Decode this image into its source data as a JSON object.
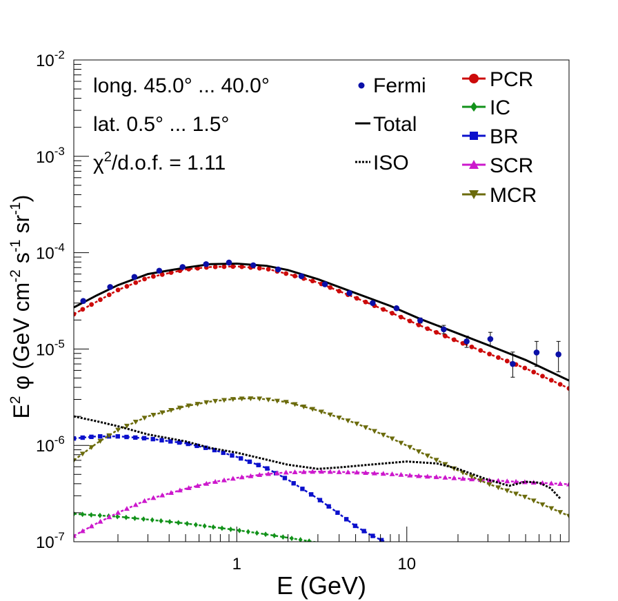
{
  "chart_data": {
    "type": "line",
    "title": "",
    "xlabel": "E (GeV)",
    "ylabel": "E² φ (GeV cm⁻² s⁻¹ sr⁻¹)",
    "ylabel_parts": {
      "e": "E",
      "e_exp": "2",
      "phi": "φ (GeV cm",
      "cm_exp": "-2",
      "s": " s",
      "s_exp": "-1",
      "sr": " sr",
      "sr_exp": "-1",
      "close": ")"
    },
    "xscale": "log",
    "yscale": "log",
    "xlim": [
      0.11,
      90
    ],
    "ylim": [
      1e-07,
      0.01
    ],
    "x_ticks": [
      {
        "value": 1,
        "label": "1"
      },
      {
        "value": 10,
        "label": "10"
      }
    ],
    "y_ticks": [
      {
        "value": 1e-07,
        "base": "10",
        "exp": "-7"
      },
      {
        "value": 1e-06,
        "base": "10",
        "exp": "-6"
      },
      {
        "value": 1e-05,
        "base": "10",
        "exp": "-5"
      },
      {
        "value": 0.0001,
        "base": "10",
        "exp": "-4"
      },
      {
        "value": 0.001,
        "base": "10",
        "exp": "-3"
      },
      {
        "value": 0.01,
        "base": "10",
        "exp": "-2"
      }
    ],
    "annotations": {
      "longitude": "long. 45.0° ... 40.0°",
      "latitude": "lat. 0.5° ... 1.5°",
      "chi_prefix": "χ",
      "chi_exp": "2",
      "chi_rest": "/d.o.f. = 1.11"
    },
    "legend_left": [
      {
        "label": "Fermi",
        "style": "points",
        "color": "#0b10a8"
      },
      {
        "label": "Total",
        "style": "solid",
        "color": "#000000"
      },
      {
        "label": "ISO",
        "style": "dotted",
        "color": "#000000"
      }
    ],
    "legend_right": [
      {
        "label": "PCR",
        "marker": "circle",
        "color": "#cc0a0a"
      },
      {
        "label": "IC",
        "marker": "diamond",
        "color": "#12921a"
      },
      {
        "label": "BR",
        "marker": "square",
        "color": "#0b10cc"
      },
      {
        "label": "SCR",
        "marker": "triangle-up",
        "color": "#cc18cc"
      },
      {
        "label": "MCR",
        "marker": "triangle-down",
        "color": "#6b6b0c"
      }
    ],
    "series": [
      {
        "name": "Fermi",
        "type": "points",
        "color": "#0b10a8",
        "x": [
          0.125,
          0.18,
          0.25,
          0.35,
          0.48,
          0.66,
          0.9,
          1.25,
          1.75,
          2.4,
          3.3,
          4.6,
          6.3,
          8.7,
          12,
          16.5,
          22.5,
          31,
          42,
          58,
          78
        ],
        "y": [
          3.15e-05,
          4.4e-05,
          5.6e-05,
          6.5e-05,
          7.1e-05,
          7.6e-05,
          7.9e-05,
          7.4e-05,
          6.7e-05,
          5.7e-05,
          4.7e-05,
          3.8e-05,
          3e-05,
          2.65e-05,
          1.98e-05,
          1.6e-05,
          1.2e-05,
          1.27e-05,
          7e-06,
          9.2e-06,
          8.8e-06
        ],
        "err_lo": [
          1.5e-06,
          1.5e-06,
          1.8e-06,
          2e-06,
          2e-06,
          2e-06,
          2e-06,
          2e-06,
          2e-06,
          1.8e-06,
          1.5e-06,
          1.2e-06,
          1e-06,
          1e-06,
          1.2e-06,
          1.6e-06,
          1.6e-06,
          1.9e-06,
          1.9e-06,
          2.6e-06,
          3e-06
        ],
        "err_hi": [
          1.5e-06,
          1.5e-06,
          1.8e-06,
          2e-06,
          2e-06,
          2e-06,
          2e-06,
          2e-06,
          2e-06,
          1.8e-06,
          1.5e-06,
          1.2e-06,
          1e-06,
          1e-06,
          1.2e-06,
          1.6e-06,
          1.6e-06,
          2.2e-06,
          2.3e-06,
          2.8e-06,
          3.2e-06
        ]
      },
      {
        "name": "Total",
        "type": "solid",
        "color": "#000000",
        "x": [
          0.11,
          0.15,
          0.2,
          0.3,
          0.5,
          0.7,
          1.0,
          1.5,
          2,
          3,
          5,
          8,
          12,
          20,
          30,
          50,
          90
        ],
        "y": [
          2.7e-05,
          3.6e-05,
          4.6e-05,
          6e-05,
          7e-05,
          7.6e-05,
          7.7e-05,
          7.3e-05,
          6.6e-05,
          5.3e-05,
          3.8e-05,
          2.8e-05,
          2.05e-05,
          1.45e-05,
          1.1e-05,
          7.7e-06,
          4.7e-06
        ]
      },
      {
        "name": "PCR",
        "type": "markers",
        "marker": "circle",
        "color": "#cc0a0a",
        "x": [
          0.11,
          0.15,
          0.2,
          0.3,
          0.5,
          0.7,
          1.0,
          1.5,
          2,
          3,
          5,
          8,
          12,
          20,
          30,
          50,
          90
        ],
        "y": [
          2.3e-05,
          3.1e-05,
          4.1e-05,
          5.5e-05,
          6.7e-05,
          7.1e-05,
          7.2e-05,
          6.8e-05,
          6e-05,
          4.9e-05,
          3.4e-05,
          2.4e-05,
          1.75e-05,
          1.2e-05,
          9e-06,
          6.3e-06,
          3.9e-06
        ]
      },
      {
        "name": "ISO",
        "type": "dotted",
        "color": "#000000",
        "x": [
          0.11,
          0.15,
          0.2,
          0.3,
          0.5,
          0.7,
          1.0,
          1.5,
          2,
          3,
          4,
          6,
          10,
          15,
          20,
          30,
          40,
          50,
          60,
          70,
          80
        ],
        "y": [
          2e-06,
          1.78e-06,
          1.58e-06,
          1.3e-06,
          1.1e-06,
          9.4e-07,
          8.4e-07,
          7.1e-07,
          6.3e-07,
          5.7e-07,
          5.9e-07,
          6.3e-07,
          6.8e-07,
          6.5e-07,
          5.7e-07,
          4.4e-07,
          3.8e-07,
          4.2e-07,
          4.1e-07,
          3.6e-07,
          2.8e-07
        ]
      },
      {
        "name": "IC",
        "type": "markers",
        "marker": "diamond",
        "color": "#12921a",
        "x": [
          0.11,
          0.2,
          0.3,
          0.5,
          0.7,
          1.0,
          1.5,
          2,
          3
        ],
        "y": [
          1.95e-07,
          1.82e-07,
          1.7e-07,
          1.55e-07,
          1.43e-07,
          1.32e-07,
          1.19e-07,
          1.1e-07,
          9.8e-08
        ]
      },
      {
        "name": "BR",
        "type": "markers",
        "marker": "square",
        "color": "#0b10cc",
        "x": [
          0.11,
          0.15,
          0.2,
          0.3,
          0.5,
          0.7,
          1.0,
          1.5,
          2,
          3,
          4,
          5,
          6,
          7,
          8
        ],
        "y": [
          1.18e-06,
          1.24e-06,
          1.24e-06,
          1.18e-06,
          1.05e-06,
          9.2e-07,
          7.6e-07,
          5.8e-07,
          4.4e-07,
          2.8e-07,
          1.95e-07,
          1.45e-07,
          1.2e-07,
          1.05e-07,
          9.5e-08
        ]
      },
      {
        "name": "SCR",
        "type": "markers",
        "marker": "triangle-up",
        "color": "#cc18cc",
        "x": [
          0.11,
          0.15,
          0.2,
          0.3,
          0.5,
          0.7,
          1.0,
          1.5,
          2,
          3,
          5,
          8,
          12,
          20,
          30,
          50,
          90
        ],
        "y": [
          1.15e-07,
          1.55e-07,
          2e-07,
          2.75e-07,
          3.55e-07,
          4.1e-07,
          4.6e-07,
          5.05e-07,
          5.25e-07,
          5.35e-07,
          5.25e-07,
          5.05e-07,
          4.8e-07,
          4.55e-07,
          4.35e-07,
          4.15e-07,
          3.95e-07
        ]
      },
      {
        "name": "MCR",
        "type": "markers",
        "marker": "triangle-down",
        "color": "#6b6b0c",
        "x": [
          0.11,
          0.15,
          0.2,
          0.3,
          0.5,
          0.7,
          1.0,
          1.3,
          1.5,
          2,
          3,
          5,
          8,
          12,
          20,
          30,
          50,
          90
        ],
        "y": [
          7e-07,
          1.05e-06,
          1.45e-06,
          2e-06,
          2.55e-06,
          2.85e-06,
          3.05e-06,
          3.08e-06,
          3e-06,
          2.8e-06,
          2.3e-06,
          1.7e-06,
          1.2e-06,
          8.5e-07,
          5.5e-07,
          4e-07,
          2.9e-07,
          1.85e-07
        ]
      }
    ]
  }
}
